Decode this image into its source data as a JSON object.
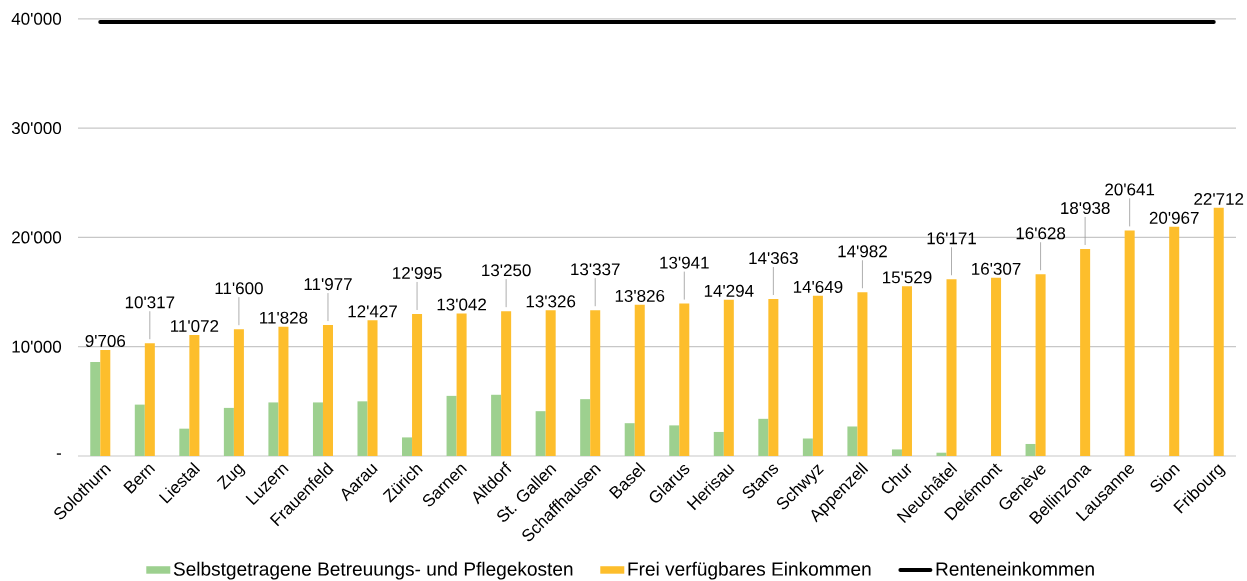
{
  "chart_data": {
    "type": "bar",
    "categories": [
      "Solothurn",
      "Bern",
      "Liestal",
      "Zug",
      "Luzern",
      "Frauenfeld",
      "Aarau",
      "Zürich",
      "Sarnen",
      "Altdorf",
      "St. Gallen",
      "Schaffhausen",
      "Basel",
      "Glarus",
      "Herisau",
      "Stans",
      "Schwyz",
      "Appenzell",
      "Chur",
      "Neuchâtel",
      "Delémont",
      "Genève",
      "Bellinzona",
      "Lausanne",
      "Sion",
      "Fribourg"
    ],
    "series": [
      {
        "name": "Selbstgetragene Betreuungs- und Pflegekosten",
        "color": "#9dd08f",
        "values": [
          8600,
          4700,
          2500,
          4400,
          4900,
          4900,
          5000,
          1700,
          5500,
          5600,
          4100,
          5200,
          3000,
          2800,
          2200,
          3400,
          1600,
          2700,
          600,
          300,
          null,
          1100,
          null,
          null,
          null,
          null
        ]
      },
      {
        "name": "Frei verfügbares Einkommen",
        "color": "#fdbe2c",
        "values": [
          9706,
          10317,
          11072,
          11600,
          11828,
          11977,
          12427,
          12995,
          13042,
          13250,
          13326,
          13337,
          13826,
          13941,
          14294,
          14363,
          14649,
          14982,
          15529,
          16171,
          16307,
          16628,
          18938,
          20641,
          20967,
          22712
        ],
        "value_labels": [
          "9'706",
          "10'317",
          "11'072",
          "11'600",
          "11'828",
          "11'977",
          "12'427",
          "12'995",
          "13'042",
          "13'250",
          "13'326",
          "13'337",
          "13'826",
          "13'941",
          "14'294",
          "14'363",
          "14'649",
          "14'982",
          "15'529",
          "16'171",
          "16'307",
          "16'628",
          "18'938",
          "20'641",
          "20'967",
          "22'712"
        ]
      },
      {
        "name": "Renteneinkommen",
        "type": "line",
        "color": "#000000",
        "values": [
          39700,
          39700,
          39700,
          39700,
          39700,
          39700,
          39700,
          39700,
          39700,
          39700,
          39700,
          39700,
          39700,
          39700,
          39700,
          39700,
          39700,
          39700,
          39700,
          39700,
          39700,
          39700,
          39700,
          39700,
          39700,
          39700
        ]
      }
    ],
    "ylim": [
      0,
      40000
    ],
    "yticks": [
      {
        "value": 0,
        "label": "-"
      },
      {
        "value": 10000,
        "label": "10'000"
      },
      {
        "value": 20000,
        "label": "20'000"
      },
      {
        "value": 30000,
        "label": "30'000"
      },
      {
        "value": 40000,
        "label": "40'000"
      }
    ],
    "grid": "y",
    "legend": "bottom"
  }
}
